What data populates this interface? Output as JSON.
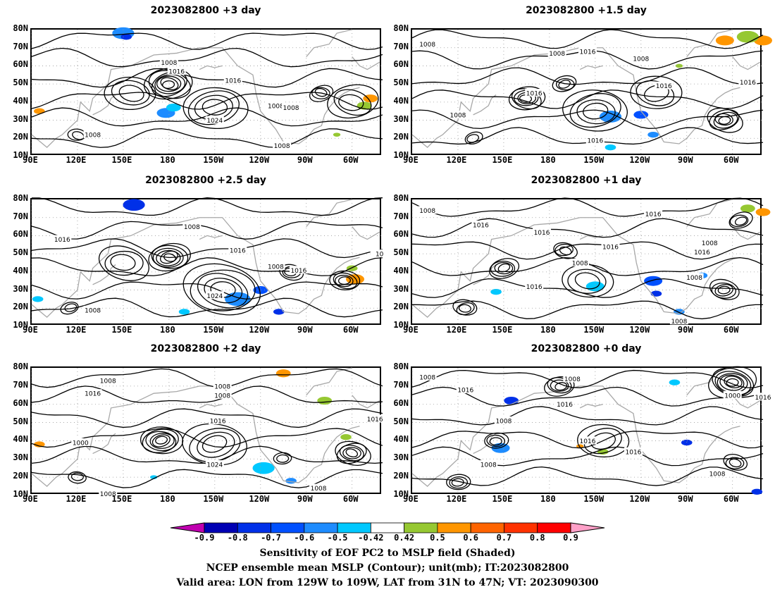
{
  "panels": [
    {
      "title": "2023082800 +3 day",
      "contour_labels": [
        "1008",
        "1016",
        "1016",
        "1024",
        "1008",
        "1008",
        "1008",
        "1008"
      ]
    },
    {
      "title": "2023082800 +1.5 day",
      "contour_labels": [
        "1008",
        "1008",
        "1016",
        "1008",
        "1016",
        "1016",
        "1016",
        "1008",
        "1016"
      ]
    },
    {
      "title": "2023082800 +2.5 day",
      "contour_labels": [
        "1016",
        "1008",
        "1016",
        "1008",
        "1016",
        "1024",
        "1008",
        "10"
      ]
    },
    {
      "title": "2023082800 +1 day",
      "contour_labels": [
        "1008",
        "1016",
        "1016",
        "1016",
        "1008",
        "1016",
        "1008",
        "1016",
        "1008",
        "1016",
        "1008"
      ]
    },
    {
      "title": "2023082800 +2 day",
      "contour_labels": [
        "1008",
        "1016",
        "1008",
        "1008",
        "1016",
        "1000",
        "1024",
        "1016",
        "1008",
        "1008"
      ]
    },
    {
      "title": "2023082800 +0 day",
      "contour_labels": [
        "1008",
        "1016",
        "1008",
        "1016",
        "1008",
        "1016",
        "1016",
        "1000",
        "1016",
        "1008",
        "1008"
      ]
    }
  ],
  "axes": {
    "y_ticks": [
      "80N",
      "70N",
      "60N",
      "50N",
      "40N",
      "30N",
      "20N",
      "10N"
    ],
    "x_ticks": [
      "90E",
      "120E",
      "150E",
      "180",
      "150W",
      "120W",
      "90W",
      "60W"
    ],
    "lon_range": [
      90,
      320
    ],
    "lat_range": [
      10,
      80
    ]
  },
  "colorbar": {
    "labels": [
      "-0.9",
      "-0.8",
      "-0.7",
      "-0.6",
      "-0.5",
      "-0.42",
      "0.42",
      "0.5",
      "0.6",
      "0.7",
      "0.8",
      "0.9"
    ],
    "colors": [
      "#c000b0",
      "#0000b4",
      "#0030e8",
      "#0050ff",
      "#1e8cff",
      "#00c8ff",
      "#ffffff",
      "#96c832",
      "#ff9600",
      "#ff6400",
      "#ff3200",
      "#ff0000",
      "#ffa0c8"
    ]
  },
  "footer": {
    "line1": "Sensitivity of EOF PC2 to MSLP field (Shaded)",
    "line2": "NCEP ensemble mean MSLP (Contour); unit(mb); IT:2023082800",
    "line3": "Valid area: LON from 129W to 109W, LAT from 31N to 47N; VT: 2023090300"
  }
}
